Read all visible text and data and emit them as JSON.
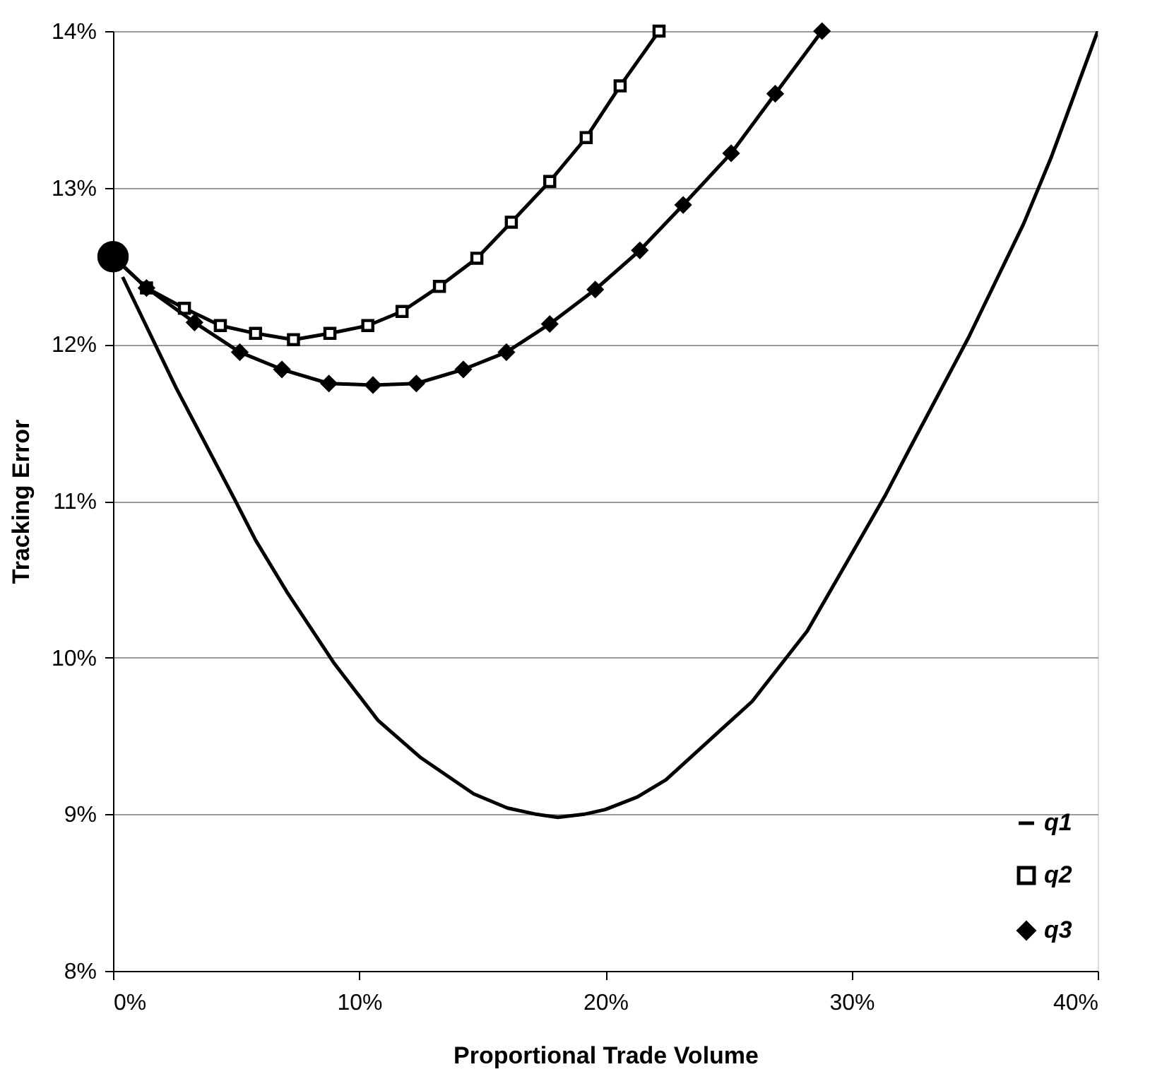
{
  "chart_data": {
    "type": "line",
    "xlabel": "Proportional Trade Volume",
    "ylabel": "Tracking Error",
    "xlim": [
      0,
      40
    ],
    "ylim": [
      8,
      14
    ],
    "xticks": [
      {
        "value": 0,
        "label": "0%"
      },
      {
        "value": 10,
        "label": "10%"
      },
      {
        "value": 20,
        "label": "20%"
      },
      {
        "value": 30,
        "label": "30%"
      },
      {
        "value": 40,
        "label": "40%"
      }
    ],
    "yticks": [
      {
        "value": 8,
        "label": "8%"
      },
      {
        "value": 9,
        "label": "9%"
      },
      {
        "value": 10,
        "label": "10%"
      },
      {
        "value": 11,
        "label": "11%"
      },
      {
        "value": 12,
        "label": "12%"
      },
      {
        "value": 13,
        "label": "13%"
      },
      {
        "value": 14,
        "label": "14%"
      }
    ],
    "grid": "y",
    "legend": "bottom right",
    "line_style": "solid",
    "series": [
      {
        "name": "q1",
        "color": "#000000",
        "marker": "none",
        "x": [
          0.39,
          2.57,
          4.91,
          5.79,
          7.06,
          9.0,
          10.76,
          12.51,
          14.65,
          16.02,
          17.19,
          18.07,
          19.14,
          20.0,
          21.3,
          22.46,
          25.96,
          28.2,
          31.35,
          32.48,
          34.74,
          36.99,
          38.1,
          40.0
        ],
        "values": [
          12.43,
          11.72,
          11.02,
          10.75,
          10.42,
          9.96,
          9.6,
          9.36,
          9.13,
          9.04,
          9.0,
          8.98,
          9.0,
          9.03,
          9.11,
          9.22,
          9.72,
          10.17,
          11.03,
          11.37,
          12.04,
          12.77,
          13.19,
          14.0
        ]
      },
      {
        "name": "q2",
        "color": "#000000",
        "marker": "square",
        "x": [
          0,
          1.36,
          2.9,
          4.36,
          5.79,
          7.33,
          8.81,
          10.35,
          11.74,
          13.26,
          14.78,
          16.18,
          17.74,
          19.22,
          20.6,
          22.18
        ],
        "values": [
          12.56,
          12.36,
          12.23,
          12.12,
          12.07,
          12.03,
          12.07,
          12.12,
          12.21,
          12.37,
          12.55,
          12.78,
          13.04,
          13.32,
          13.65,
          14.0
        ]
      },
      {
        "name": "q3",
        "color": "#000000",
        "marker": "diamond",
        "x": [
          0,
          1.36,
          3.31,
          5.15,
          6.86,
          8.77,
          10.56,
          12.32,
          14.23,
          15.98,
          17.74,
          19.59,
          21.4,
          23.16,
          25.11,
          26.9,
          28.8
        ],
        "values": [
          12.56,
          12.36,
          12.14,
          11.95,
          11.84,
          11.75,
          11.74,
          11.75,
          11.84,
          11.95,
          12.13,
          12.35,
          12.6,
          12.89,
          13.22,
          13.6,
          14.0
        ]
      },
      {
        "type": "scatter",
        "color": "#000000",
        "marker": "circle",
        "x": [
          0
        ],
        "values": [
          12.56
        ]
      }
    ]
  }
}
